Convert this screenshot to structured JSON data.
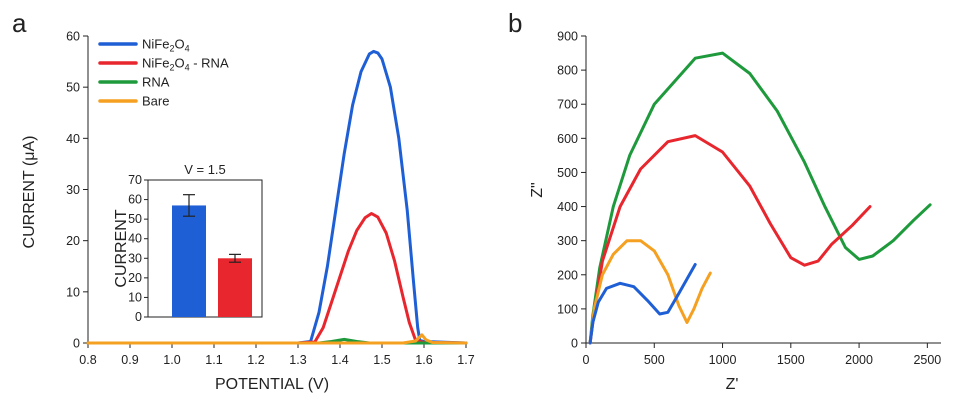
{
  "chart_data": [
    {
      "panel": "a",
      "type": "line",
      "xlabel": "POTENTIAL (V)",
      "ylabel": "CURRENT (μA)",
      "xlim": [
        0.8,
        1.7
      ],
      "ylim": [
        0,
        60
      ],
      "xticks": [
        "0.8",
        "0.9",
        "1.0",
        "1.1",
        "1.2",
        "1.3",
        "1.4",
        "1.5",
        "1.6",
        "1.7"
      ],
      "yticks": [
        "0",
        "10",
        "20",
        "30",
        "40",
        "50",
        "60"
      ],
      "legend_position": "top-left",
      "series": [
        {
          "name": "NiFe2O4",
          "color": "#1f5fd6",
          "points": [
            [
              0.8,
              0
            ],
            [
              1.2,
              0
            ],
            [
              1.3,
              0
            ],
            [
              1.33,
              0.3
            ],
            [
              1.35,
              6
            ],
            [
              1.37,
              15
            ],
            [
              1.39,
              26
            ],
            [
              1.41,
              37
            ],
            [
              1.43,
              46.5
            ],
            [
              1.45,
              53
            ],
            [
              1.47,
              56.5
            ],
            [
              1.48,
              57
            ],
            [
              1.49,
              56.7
            ],
            [
              1.5,
              55.5
            ],
            [
              1.52,
              50
            ],
            [
              1.54,
              40
            ],
            [
              1.56,
              26
            ],
            [
              1.575,
              12
            ],
            [
              1.585,
              3
            ],
            [
              1.59,
              0.5
            ],
            [
              1.6,
              0.3
            ],
            [
              1.7,
              0
            ]
          ]
        },
        {
          "name": "NiFe2O4 - RNA",
          "color": "#e8262e",
          "points": [
            [
              0.8,
              0
            ],
            [
              1.3,
              0
            ],
            [
              1.34,
              0.2
            ],
            [
              1.36,
              3
            ],
            [
              1.38,
              8
            ],
            [
              1.4,
              13
            ],
            [
              1.42,
              18
            ],
            [
              1.44,
              22
            ],
            [
              1.46,
              24.5
            ],
            [
              1.475,
              25.3
            ],
            [
              1.49,
              24.6
            ],
            [
              1.51,
              21.5
            ],
            [
              1.53,
              16
            ],
            [
              1.55,
              9
            ],
            [
              1.565,
              4
            ],
            [
              1.58,
              0.5
            ],
            [
              1.6,
              0.1
            ],
            [
              1.7,
              0
            ]
          ]
        },
        {
          "name": "RNA",
          "color": "#1e9a3c",
          "points": [
            [
              0.8,
              0
            ],
            [
              1.35,
              0
            ],
            [
              1.38,
              0.3
            ],
            [
              1.41,
              0.7
            ],
            [
              1.44,
              0.3
            ],
            [
              1.47,
              0
            ],
            [
              1.7,
              0
            ]
          ]
        },
        {
          "name": "Bare",
          "color": "#f5a020",
          "points": [
            [
              0.8,
              0
            ],
            [
              1.55,
              0
            ],
            [
              1.58,
              0.4
            ],
            [
              1.595,
              1.6
            ],
            [
              1.605,
              0.6
            ],
            [
              1.62,
              0.1
            ],
            [
              1.7,
              0
            ]
          ]
        }
      ],
      "inset": {
        "type": "bar",
        "title": "V = 1.5",
        "ylabel": "CURRENT",
        "ylim": [
          0,
          70
        ],
        "yticks": [
          "0",
          "10",
          "20",
          "30",
          "40",
          "50",
          "60",
          "70"
        ],
        "bars": [
          {
            "value": 57,
            "error": 5.5,
            "color": "#1f5fd6"
          },
          {
            "value": 30,
            "error": 2,
            "color": "#e8262e"
          }
        ]
      }
    },
    {
      "panel": "b",
      "type": "line",
      "xlabel": "Z'",
      "ylabel": "Z\"",
      "xlim": [
        0,
        2600
      ],
      "ylim": [
        0,
        900
      ],
      "xticks": [
        "0",
        "500",
        "1000",
        "1500",
        "2000",
        "2500"
      ],
      "yticks": [
        "0",
        "100",
        "200",
        "300",
        "400",
        "500",
        "600",
        "700",
        "800",
        "900"
      ],
      "series": [
        {
          "color": "#1e9a3c",
          "points": [
            [
              30,
              0
            ],
            [
              50,
              80
            ],
            [
              100,
              220
            ],
            [
              200,
              400
            ],
            [
              320,
              550
            ],
            [
              500,
              700
            ],
            [
              800,
              835
            ],
            [
              1000,
              850
            ],
            [
              1200,
              790
            ],
            [
              1400,
              680
            ],
            [
              1600,
              530
            ],
            [
              1750,
              400
            ],
            [
              1900,
              280
            ],
            [
              2000,
              245
            ],
            [
              2100,
              255
            ],
            [
              2250,
              300
            ],
            [
              2400,
              360
            ],
            [
              2520,
              405
            ]
          ]
        },
        {
          "color": "#e8262e",
          "points": [
            [
              30,
              0
            ],
            [
              60,
              90
            ],
            [
              120,
              240
            ],
            [
              250,
              400
            ],
            [
              400,
              510
            ],
            [
              600,
              590
            ],
            [
              800,
              608
            ],
            [
              1000,
              560
            ],
            [
              1200,
              460
            ],
            [
              1350,
              350
            ],
            [
              1500,
              250
            ],
            [
              1600,
              228
            ],
            [
              1700,
              240
            ],
            [
              1800,
              290
            ],
            [
              1950,
              345
            ],
            [
              2080,
              400
            ]
          ]
        },
        {
          "color": "#f5a020",
          "points": [
            [
              30,
              0
            ],
            [
              60,
              100
            ],
            [
              120,
              200
            ],
            [
              200,
              260
            ],
            [
              300,
              300
            ],
            [
              400,
              300
            ],
            [
              500,
              270
            ],
            [
              600,
              200
            ],
            [
              680,
              110
            ],
            [
              740,
              60
            ],
            [
              790,
              100
            ],
            [
              850,
              160
            ],
            [
              910,
              205
            ]
          ]
        },
        {
          "color": "#1f5fd6",
          "points": [
            [
              30,
              0
            ],
            [
              50,
              60
            ],
            [
              90,
              120
            ],
            [
              150,
              160
            ],
            [
              250,
              175
            ],
            [
              350,
              165
            ],
            [
              450,
              125
            ],
            [
              540,
              85
            ],
            [
              600,
              90
            ],
            [
              680,
              145
            ],
            [
              750,
              195
            ],
            [
              800,
              230
            ]
          ]
        }
      ]
    }
  ]
}
